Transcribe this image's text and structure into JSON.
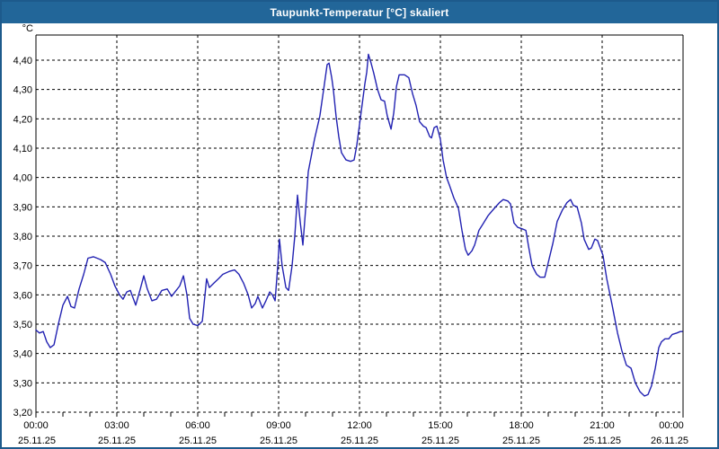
{
  "window": {
    "title": "Taupunkt-Temperatur [°C] skaliert"
  },
  "colors": {
    "title_bar": "#226699",
    "window_border": "#1d5a8c",
    "line": "#2222b2",
    "grid": "#000000",
    "background": "#ffffff"
  },
  "chart_data": {
    "type": "line",
    "title": "Taupunkt-Temperatur [°C] skaliert",
    "ylabel": "°C",
    "xlabel": "",
    "grid": true,
    "grid_style": "dashed",
    "legend": "none",
    "ylim": [
      3.2,
      4.49
    ],
    "xlim_hours": [
      0,
      24
    ],
    "y_ticks": [
      {
        "value": 3.2,
        "label": "3,20"
      },
      {
        "value": 3.3,
        "label": "3,30"
      },
      {
        "value": 3.4,
        "label": "3,40"
      },
      {
        "value": 3.5,
        "label": "3,50"
      },
      {
        "value": 3.6,
        "label": "3,60"
      },
      {
        "value": 3.7,
        "label": "3,70"
      },
      {
        "value": 3.8,
        "label": "3,80"
      },
      {
        "value": 3.9,
        "label": "3,90"
      },
      {
        "value": 4.0,
        "label": "4,00"
      },
      {
        "value": 4.1,
        "label": "4,10"
      },
      {
        "value": 4.2,
        "label": "4,20"
      },
      {
        "value": 4.3,
        "label": "4,30"
      },
      {
        "value": 4.4,
        "label": "4,40"
      }
    ],
    "x_ticks": [
      {
        "hour": 0,
        "time": "00:00",
        "date": "25.11.25"
      },
      {
        "hour": 3,
        "time": "03:00",
        "date": "25.11.25"
      },
      {
        "hour": 6,
        "time": "06:00",
        "date": "25.11.25"
      },
      {
        "hour": 9,
        "time": "09:00",
        "date": "25.11.25"
      },
      {
        "hour": 12,
        "time": "12:00",
        "date": "25.11.25"
      },
      {
        "hour": 15,
        "time": "15:00",
        "date": "25.11.25"
      },
      {
        "hour": 18,
        "time": "18:00",
        "date": "25.11.25"
      },
      {
        "hour": 21,
        "time": "21:00",
        "date": "25.11.25"
      },
      {
        "hour": 24,
        "time": "00:00",
        "date": "26.11.25"
      }
    ],
    "series": [
      {
        "name": "Taupunkt-Temperatur [°C] skaliert",
        "points": [
          [
            0.0,
            3.48
          ],
          [
            0.13,
            3.47
          ],
          [
            0.27,
            3.475
          ],
          [
            0.4,
            3.44
          ],
          [
            0.53,
            3.42
          ],
          [
            0.67,
            3.43
          ],
          [
            0.83,
            3.5
          ],
          [
            1.0,
            3.565
          ],
          [
            1.17,
            3.595
          ],
          [
            1.3,
            3.56
          ],
          [
            1.43,
            3.555
          ],
          [
            1.6,
            3.62
          ],
          [
            1.77,
            3.67
          ],
          [
            1.93,
            3.725
          ],
          [
            2.13,
            3.73
          ],
          [
            2.4,
            3.72
          ],
          [
            2.57,
            3.71
          ],
          [
            2.77,
            3.67
          ],
          [
            2.93,
            3.63
          ],
          [
            3.1,
            3.6
          ],
          [
            3.23,
            3.585
          ],
          [
            3.37,
            3.61
          ],
          [
            3.5,
            3.615
          ],
          [
            3.7,
            3.565
          ],
          [
            3.87,
            3.62
          ],
          [
            4.0,
            3.665
          ],
          [
            4.13,
            3.62
          ],
          [
            4.3,
            3.58
          ],
          [
            4.47,
            3.585
          ],
          [
            4.67,
            3.615
          ],
          [
            4.87,
            3.62
          ],
          [
            5.03,
            3.595
          ],
          [
            5.2,
            3.615
          ],
          [
            5.33,
            3.63
          ],
          [
            5.47,
            3.665
          ],
          [
            5.6,
            3.6
          ],
          [
            5.7,
            3.52
          ],
          [
            5.83,
            3.5
          ],
          [
            6.0,
            3.495
          ],
          [
            6.17,
            3.51
          ],
          [
            6.33,
            3.655
          ],
          [
            6.43,
            3.625
          ],
          [
            6.6,
            3.64
          ],
          [
            6.77,
            3.655
          ],
          [
            6.93,
            3.67
          ],
          [
            7.17,
            3.68
          ],
          [
            7.37,
            3.685
          ],
          [
            7.53,
            3.67
          ],
          [
            7.7,
            3.64
          ],
          [
            7.87,
            3.6
          ],
          [
            8.0,
            3.555
          ],
          [
            8.13,
            3.57
          ],
          [
            8.23,
            3.595
          ],
          [
            8.4,
            3.555
          ],
          [
            8.53,
            3.58
          ],
          [
            8.67,
            3.61
          ],
          [
            8.77,
            3.6
          ],
          [
            8.87,
            3.58
          ],
          [
            8.97,
            3.7
          ],
          [
            9.03,
            3.79
          ],
          [
            9.13,
            3.7
          ],
          [
            9.27,
            3.625
          ],
          [
            9.37,
            3.615
          ],
          [
            9.5,
            3.7
          ],
          [
            9.6,
            3.8
          ],
          [
            9.7,
            3.94
          ],
          [
            9.8,
            3.85
          ],
          [
            9.9,
            3.77
          ],
          [
            10.0,
            3.89
          ],
          [
            10.1,
            4.02
          ],
          [
            10.33,
            4.13
          ],
          [
            10.53,
            4.21
          ],
          [
            10.67,
            4.3
          ],
          [
            10.8,
            4.385
          ],
          [
            10.87,
            4.39
          ],
          [
            10.97,
            4.34
          ],
          [
            11.03,
            4.3
          ],
          [
            11.13,
            4.21
          ],
          [
            11.23,
            4.14
          ],
          [
            11.33,
            4.085
          ],
          [
            11.5,
            4.06
          ],
          [
            11.67,
            4.055
          ],
          [
            11.8,
            4.06
          ],
          [
            11.9,
            4.11
          ],
          [
            12.0,
            4.18
          ],
          [
            12.1,
            4.25
          ],
          [
            12.2,
            4.32
          ],
          [
            12.27,
            4.36
          ],
          [
            12.33,
            4.42
          ],
          [
            12.43,
            4.39
          ],
          [
            12.53,
            4.355
          ],
          [
            12.67,
            4.3
          ],
          [
            12.8,
            4.265
          ],
          [
            12.93,
            4.26
          ],
          [
            13.03,
            4.21
          ],
          [
            13.17,
            4.165
          ],
          [
            13.27,
            4.22
          ],
          [
            13.37,
            4.31
          ],
          [
            13.47,
            4.35
          ],
          [
            13.67,
            4.35
          ],
          [
            13.83,
            4.34
          ],
          [
            13.97,
            4.285
          ],
          [
            14.1,
            4.245
          ],
          [
            14.23,
            4.19
          ],
          [
            14.37,
            4.175
          ],
          [
            14.47,
            4.17
          ],
          [
            14.6,
            4.14
          ],
          [
            14.67,
            4.135
          ],
          [
            14.77,
            4.17
          ],
          [
            14.87,
            4.175
          ],
          [
            15.0,
            4.13
          ],
          [
            15.1,
            4.06
          ],
          [
            15.23,
            4.0
          ],
          [
            15.33,
            3.975
          ],
          [
            15.5,
            3.93
          ],
          [
            15.67,
            3.895
          ],
          [
            15.8,
            3.82
          ],
          [
            15.93,
            3.755
          ],
          [
            16.03,
            3.735
          ],
          [
            16.17,
            3.75
          ],
          [
            16.27,
            3.77
          ],
          [
            16.43,
            3.82
          ],
          [
            16.57,
            3.84
          ],
          [
            16.77,
            3.87
          ],
          [
            17.0,
            3.895
          ],
          [
            17.2,
            3.915
          ],
          [
            17.33,
            3.925
          ],
          [
            17.5,
            3.92
          ],
          [
            17.6,
            3.91
          ],
          [
            17.73,
            3.845
          ],
          [
            17.87,
            3.83
          ],
          [
            18.03,
            3.825
          ],
          [
            18.17,
            3.82
          ],
          [
            18.27,
            3.765
          ],
          [
            18.4,
            3.7
          ],
          [
            18.57,
            3.67
          ],
          [
            18.7,
            3.66
          ],
          [
            18.87,
            3.66
          ],
          [
            19.0,
            3.71
          ],
          [
            19.17,
            3.775
          ],
          [
            19.33,
            3.85
          ],
          [
            19.53,
            3.89
          ],
          [
            19.7,
            3.915
          ],
          [
            19.83,
            3.925
          ],
          [
            19.93,
            3.905
          ],
          [
            20.07,
            3.9
          ],
          [
            20.23,
            3.845
          ],
          [
            20.33,
            3.79
          ],
          [
            20.5,
            3.755
          ],
          [
            20.6,
            3.76
          ],
          [
            20.73,
            3.79
          ],
          [
            20.83,
            3.785
          ],
          [
            20.93,
            3.76
          ],
          [
            21.03,
            3.735
          ],
          [
            21.17,
            3.655
          ],
          [
            21.37,
            3.565
          ],
          [
            21.57,
            3.47
          ],
          [
            21.73,
            3.41
          ],
          [
            21.9,
            3.36
          ],
          [
            22.07,
            3.35
          ],
          [
            22.23,
            3.3
          ],
          [
            22.4,
            3.27
          ],
          [
            22.57,
            3.255
          ],
          [
            22.7,
            3.26
          ],
          [
            22.83,
            3.29
          ],
          [
            22.97,
            3.35
          ],
          [
            23.1,
            3.42
          ],
          [
            23.2,
            3.44
          ],
          [
            23.33,
            3.45
          ],
          [
            23.47,
            3.45
          ],
          [
            23.6,
            3.465
          ],
          [
            23.77,
            3.47
          ],
          [
            23.9,
            3.475
          ],
          [
            23.97,
            3.475
          ]
        ]
      }
    ]
  }
}
